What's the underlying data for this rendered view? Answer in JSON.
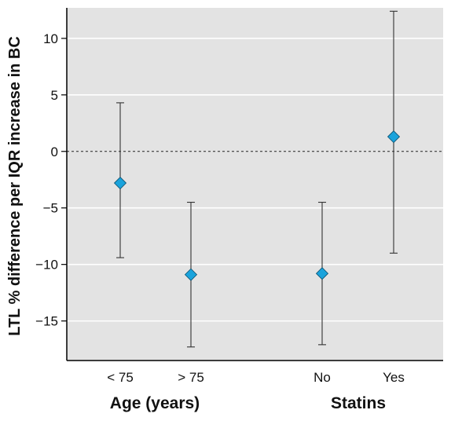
{
  "chart_data": {
    "type": "scatter",
    "ylabel": "LTL % difference per IQR increase in BC",
    "ylim": [
      -18.5,
      12.7
    ],
    "yticks": [
      10,
      5,
      0,
      -5,
      -10,
      -15
    ],
    "ytick_labels": [
      "10",
      "5",
      "0",
      "−5",
      "−10",
      "−15"
    ],
    "grid": true,
    "reference_line_y": 0,
    "groups": [
      {
        "label": "Age (years)",
        "categories": [
          "< 75",
          "> 75"
        ]
      },
      {
        "label": "Statins",
        "categories": [
          "No",
          "Yes"
        ]
      }
    ],
    "points": [
      {
        "category": "< 75",
        "estimate": -2.8,
        "lower": -9.4,
        "upper": 4.3
      },
      {
        "category": "> 75",
        "estimate": -10.9,
        "lower": -17.3,
        "upper": -4.5
      },
      {
        "category": "No",
        "estimate": -10.8,
        "lower": -17.1,
        "upper": -4.5
      },
      {
        "category": "Yes",
        "estimate": 1.3,
        "lower": -9.0,
        "upper": 12.4
      }
    ],
    "colors": {
      "background": "#e3e3e3",
      "gridline": "#ffffff",
      "marker": "#1aa3dc",
      "marker_stroke": "#0a4f6e",
      "errorbar": "#333333"
    }
  }
}
